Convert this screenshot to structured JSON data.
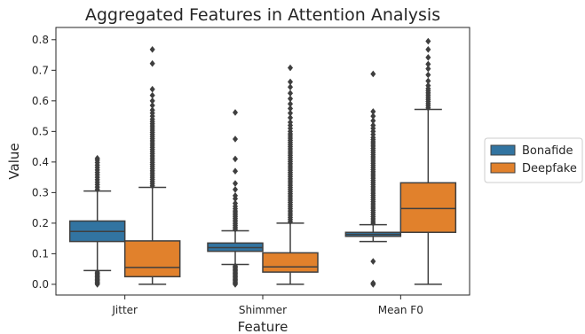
{
  "chart_data": {
    "type": "boxplot",
    "title": "Aggregated Features in Attention Analysis",
    "xlabel": "Feature",
    "ylabel": "Value",
    "ylim": [
      -0.035,
      0.84
    ],
    "yticks": [
      0.0,
      0.1,
      0.2,
      0.3,
      0.4,
      0.5,
      0.6,
      0.7,
      0.8
    ],
    "ytick_labels": [
      "0.0",
      "0.1",
      "0.2",
      "0.3",
      "0.4",
      "0.5",
      "0.6",
      "0.7",
      "0.8"
    ],
    "categories": [
      "Jitter",
      "Shimmer",
      "Mean F0"
    ],
    "legend_position": "right-outside",
    "grid": false,
    "series": [
      {
        "name": "Bonafide",
        "color": "#3274a1",
        "boxes": [
          {
            "whislo": 0.045,
            "q1": 0.14,
            "med": 0.173,
            "q3": 0.207,
            "whishi": 0.305,
            "fliers": [
              0.0,
              0.004,
              0.008,
              0.012,
              0.016,
              0.02,
              0.024,
              0.028,
              0.032,
              0.036,
              0.04,
              0.31,
              0.318,
              0.326,
              0.334,
              0.342,
              0.35,
              0.358,
              0.366,
              0.374,
              0.382,
              0.39,
              0.398,
              0.406,
              0.412
            ]
          },
          {
            "whislo": 0.065,
            "q1": 0.108,
            "med": 0.12,
            "q3": 0.135,
            "whishi": 0.175,
            "fliers": [
              0.0,
              0.004,
              0.008,
              0.012,
              0.016,
              0.02,
              0.024,
              0.028,
              0.032,
              0.036,
              0.04,
              0.044,
              0.048,
              0.052,
              0.056,
              0.06,
              0.18,
              0.186,
              0.192,
              0.198,
              0.204,
              0.21,
              0.216,
              0.222,
              0.228,
              0.234,
              0.24,
              0.247,
              0.255,
              0.265,
              0.28,
              0.29,
              0.31,
              0.33,
              0.37,
              0.41,
              0.475,
              0.562
            ]
          },
          {
            "whislo": 0.14,
            "q1": 0.157,
            "med": 0.163,
            "q3": 0.17,
            "whishi": 0.195,
            "fliers": [
              0.0,
              0.004,
              0.075,
              0.2,
              0.207,
              0.214,
              0.221,
              0.228,
              0.235,
              0.242,
              0.249,
              0.256,
              0.263,
              0.27,
              0.277,
              0.284,
              0.291,
              0.298,
              0.305,
              0.312,
              0.319,
              0.326,
              0.333,
              0.34,
              0.347,
              0.354,
              0.361,
              0.368,
              0.375,
              0.382,
              0.389,
              0.396,
              0.403,
              0.41,
              0.417,
              0.424,
              0.431,
              0.438,
              0.445,
              0.452,
              0.459,
              0.466,
              0.473,
              0.48,
              0.49,
              0.5,
              0.51,
              0.52,
              0.535,
              0.55,
              0.565,
              0.688
            ]
          }
        ]
      },
      {
        "name": "Deepfake",
        "color": "#e1812c",
        "boxes": [
          {
            "whislo": 0.0,
            "q1": 0.025,
            "med": 0.055,
            "q3": 0.142,
            "whishi": 0.317,
            "fliers": [
              0.322,
              0.329,
              0.336,
              0.343,
              0.35,
              0.357,
              0.364,
              0.371,
              0.378,
              0.385,
              0.392,
              0.399,
              0.406,
              0.413,
              0.42,
              0.427,
              0.434,
              0.441,
              0.448,
              0.455,
              0.462,
              0.469,
              0.476,
              0.483,
              0.49,
              0.497,
              0.504,
              0.511,
              0.518,
              0.525,
              0.532,
              0.54,
              0.55,
              0.56,
              0.57,
              0.585,
              0.6,
              0.618,
              0.638,
              0.722,
              0.768
            ]
          },
          {
            "whislo": 0.0,
            "q1": 0.04,
            "med": 0.057,
            "q3": 0.103,
            "whishi": 0.2,
            "fliers": [
              0.205,
              0.212,
              0.219,
              0.226,
              0.233,
              0.24,
              0.247,
              0.254,
              0.261,
              0.268,
              0.275,
              0.282,
              0.289,
              0.296,
              0.303,
              0.31,
              0.317,
              0.324,
              0.331,
              0.338,
              0.345,
              0.352,
              0.359,
              0.366,
              0.373,
              0.38,
              0.387,
              0.394,
              0.401,
              0.408,
              0.415,
              0.422,
              0.429,
              0.436,
              0.443,
              0.45,
              0.457,
              0.464,
              0.471,
              0.478,
              0.485,
              0.492,
              0.5,
              0.51,
              0.52,
              0.53,
              0.545,
              0.56,
              0.575,
              0.59,
              0.607,
              0.625,
              0.645,
              0.662,
              0.708
            ]
          },
          {
            "whislo": 0.0,
            "q1": 0.17,
            "med": 0.248,
            "q3": 0.332,
            "whishi": 0.572,
            "fliers": [
              0.577,
              0.584,
              0.591,
              0.598,
              0.605,
              0.612,
              0.619,
              0.626,
              0.633,
              0.64,
              0.65,
              0.665,
              0.685,
              0.705,
              0.72,
              0.742,
              0.768,
              0.795
            ]
          }
        ]
      }
    ]
  }
}
